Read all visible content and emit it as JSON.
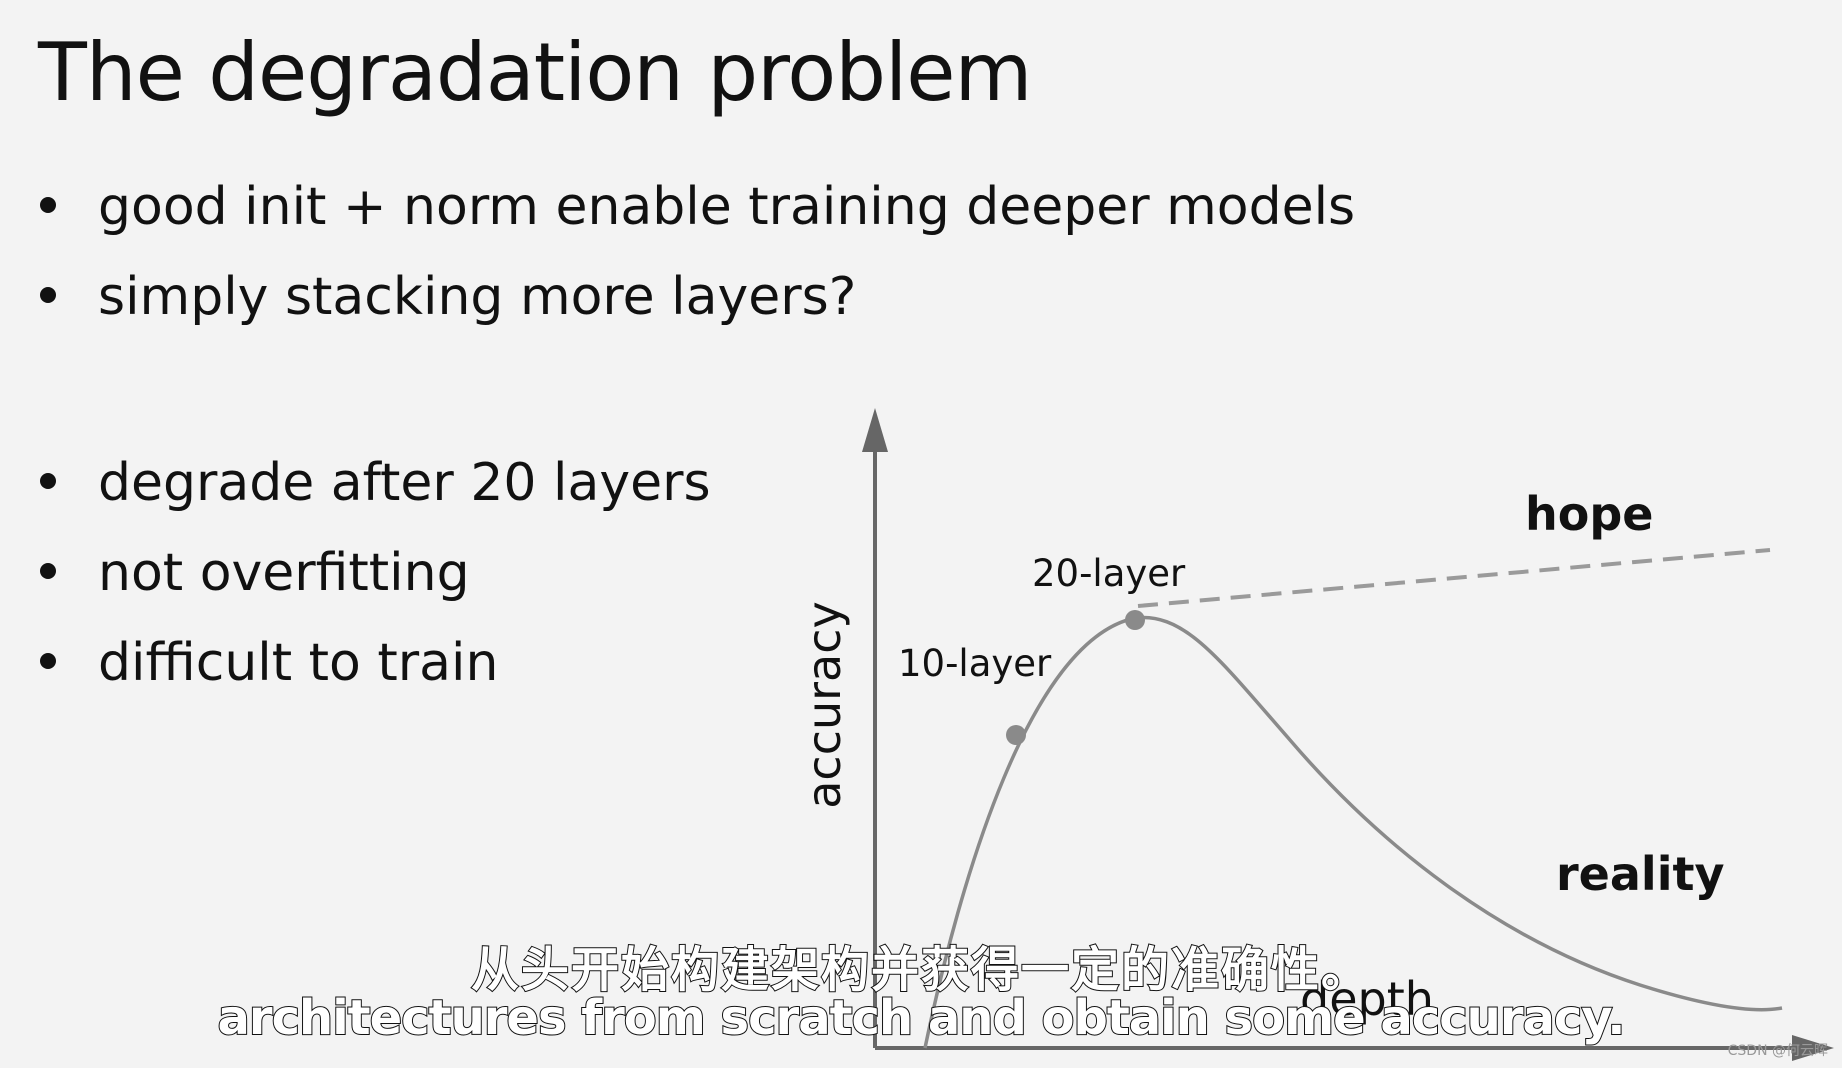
{
  "slide": {
    "title": "The degradation problem",
    "bullets_top": [
      "good init + norm enable training deeper models",
      "simply stacking more layers?"
    ],
    "bullets_bottom": [
      "degrade after 20 layers",
      "not overfitting",
      "difficult to train"
    ]
  },
  "diagram": {
    "y_axis_label": "accuracy",
    "x_axis_label": "depth",
    "point_labels": [
      "10-layer",
      "20-layer"
    ],
    "hope_label": "hope",
    "reality_label": "reality",
    "colors": {
      "curve": "#8a8a8a",
      "axis": "#666666",
      "dashed": "#9a9a9a",
      "points": "#8a8a8a"
    }
  },
  "subtitles": {
    "zh": "从头开始构建架构并获得一定的准确性。",
    "en": "architectures from scratch and obtain some accuracy."
  },
  "watermark": "CSDN @何云晖"
}
